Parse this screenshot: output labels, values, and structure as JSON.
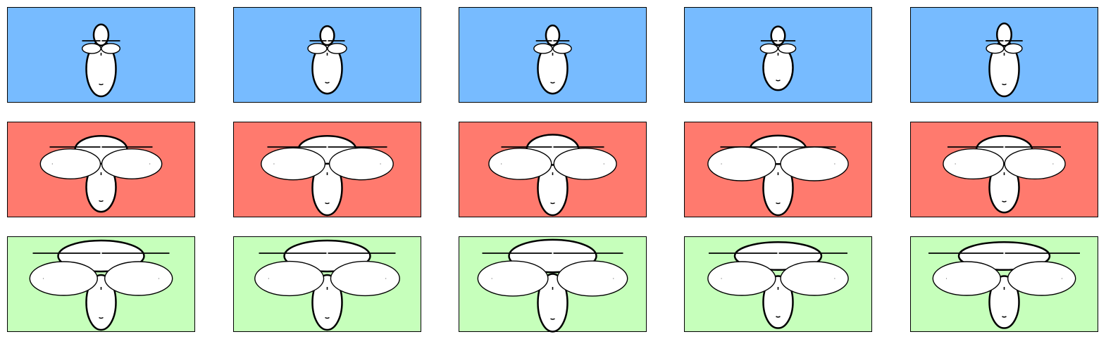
{
  "colors": {
    "row_backgrounds": [
      "#77bbff",
      "#ff7a6e",
      "#c6ffbb"
    ],
    "face_fill": "#ffffff",
    "stroke": "#000000",
    "panel_border": "#000000"
  },
  "grid": {
    "rows": 3,
    "columns": 5
  },
  "faces": [
    [
      {
        "head_height": 1.0,
        "head_width": 1.0,
        "ear_size": 0.28,
        "ear_spread": 0.28,
        "hat_width": 0.5,
        "hat_height": 0.34
      },
      {
        "head_height": 0.92,
        "head_width": 1.0,
        "ear_size": 0.3,
        "ear_spread": 0.3,
        "hat_width": 0.4,
        "hat_height": 0.24
      },
      {
        "head_height": 0.92,
        "head_width": 1.0,
        "ear_size": 0.27,
        "ear_spread": 0.28,
        "hat_width": 0.34,
        "hat_height": 0.28
      },
      {
        "head_height": 0.82,
        "head_width": 1.0,
        "ear_size": 0.22,
        "ear_spread": 0.24,
        "hat_width": 0.38,
        "hat_height": 0.22
      },
      {
        "head_height": 1.0,
        "head_width": 1.0,
        "ear_size": 0.23,
        "ear_spread": 0.25,
        "hat_width": 0.46,
        "hat_height": 0.4
      }
    ],
    [
      {
        "head_height": 0.9,
        "head_width": 1.0,
        "ear_size": 0.7,
        "ear_spread": 0.8,
        "hat_width": 1.1,
        "hat_height": 0.3
      },
      {
        "head_height": 1.0,
        "head_width": 1.0,
        "ear_size": 0.85,
        "ear_spread": 0.95,
        "hat_width": 1.5,
        "hat_height": 0.3
      },
      {
        "head_height": 1.0,
        "head_width": 1.0,
        "ear_size": 0.8,
        "ear_spread": 0.88,
        "hat_width": 1.1,
        "hat_height": 0.38
      },
      {
        "head_height": 1.0,
        "head_width": 1.0,
        "ear_size": 1.0,
        "ear_spread": 1.05,
        "hat_width": 1.4,
        "hat_height": 0.32
      },
      {
        "head_height": 0.92,
        "head_width": 1.0,
        "ear_size": 0.72,
        "ear_spread": 0.8,
        "hat_width": 1.35,
        "hat_height": 0.3
      }
    ],
    [
      {
        "head_height": 1.0,
        "head_width": 1.0,
        "ear_size": 1.0,
        "ear_spread": 1.1,
        "hat_width": 1.9,
        "hat_height": 0.4
      },
      {
        "head_height": 1.0,
        "head_width": 1.0,
        "ear_size": 1.05,
        "ear_spread": 1.12,
        "hat_width": 1.9,
        "hat_height": 0.4
      },
      {
        "head_height": 1.05,
        "head_width": 1.0,
        "ear_size": 1.1,
        "ear_spread": 1.2,
        "hat_width": 2.0,
        "hat_height": 0.45
      },
      {
        "head_height": 0.95,
        "head_width": 1.0,
        "ear_size": 1.0,
        "ear_spread": 1.05,
        "hat_width": 1.95,
        "hat_height": 0.3
      },
      {
        "head_height": 0.95,
        "head_width": 1.0,
        "ear_size": 1.0,
        "ear_spread": 1.1,
        "hat_width": 2.25,
        "hat_height": 0.3
      }
    ]
  ]
}
